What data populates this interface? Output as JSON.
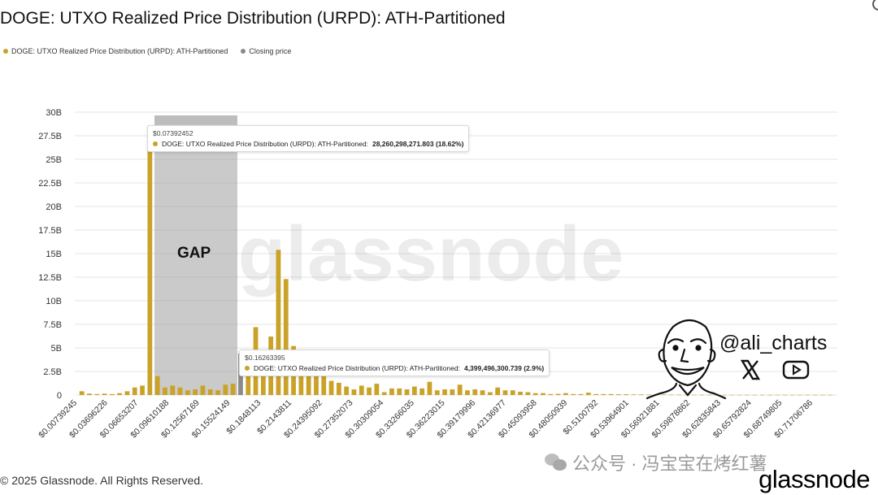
{
  "title": "DOGE: UTXO Realized Price Distribution (URPD): ATH-Partitioned",
  "colors": {
    "series": "#c9a227",
    "closing": "#8a8a8a",
    "gap": "#9e9e9e",
    "grid": "#e6e6e6"
  },
  "legend": [
    {
      "label": "DOGE: UTXO Realized Price Distribution (URPD): ATH-Partitioned",
      "color": "#c9a227"
    },
    {
      "label": "Closing price",
      "color": "#8a8a8a"
    }
  ],
  "gap_label": "GAP",
  "tooltips": [
    {
      "price": "$0.07392452",
      "series": "DOGE: UTXO Realized Price Distribution (URPD): ATH-Partitioned:",
      "value": "28,260,298,271.803 (18.62%)"
    },
    {
      "price": "$0.16263395",
      "series": "DOGE: UTXO Realized Price Distribution (URPD): ATH-Partitioned:",
      "value": "4,399,496,300.739 (2.9%)"
    }
  ],
  "handle": "@ali_charts",
  "watermark_brand": "glassnode",
  "watermark_cn": "公众号 · 冯宝宝在烤红薯",
  "footer": "© 2025 Glassnode. All Rights Reserved.",
  "brand": "glassnode",
  "chart_data": {
    "type": "bar",
    "title": "DOGE: UTXO Realized Price Distribution (URPD): ATH-Partitioned",
    "ylabel": "",
    "xlabel": "",
    "ylim": [
      0,
      30
    ],
    "y_unit": "B",
    "y_ticks": [
      "0",
      "2.5B",
      "5B",
      "7.5B",
      "10B",
      "12.5B",
      "15B",
      "17.5B",
      "20B",
      "22.5B",
      "25B",
      "27.5B",
      "30B"
    ],
    "x_tick_labels": [
      "$0.00739245",
      "$0.03696226",
      "$0.06653207",
      "$0.09610188",
      "$0.12567169",
      "$0.15524149",
      "$0.1848113",
      "$0.2143811",
      "$0.24395092",
      "$0.27352073",
      "$0.30309054",
      "$0.33266035",
      "$0.36223015",
      "$0.39179996",
      "$0.42136977",
      "$0.45093958",
      "$0.48050939",
      "$0.5100792",
      "$0.53964901",
      "$0.56921881",
      "$0.59878862",
      "$0.62835843",
      "$0.65792824",
      "$0.68749805",
      "$0.71706786"
    ],
    "gap_range": [
      "$0.07392452",
      "$0.16263395"
    ],
    "closing_price": "$0.16263395",
    "series": [
      {
        "name": "DOGE: UTXO Realized Price Distribution (URPD): ATH-Partitioned",
        "values": [
          0.4,
          0.15,
          0.1,
          0.15,
          0.1,
          0.2,
          0.4,
          0.8,
          1.0,
          28.26,
          2.0,
          0.8,
          1.0,
          0.8,
          0.5,
          0.6,
          1.0,
          0.6,
          0.5,
          1.1,
          1.2,
          4.4,
          2.5,
          7.2,
          4.0,
          6.2,
          15.4,
          12.3,
          5.2,
          3.0,
          2.6,
          2.3,
          2.0,
          1.5,
          1.3,
          0.9,
          0.6,
          1.0,
          0.8,
          1.2,
          0.3,
          0.7,
          0.7,
          0.6,
          0.9,
          0.7,
          1.4,
          0.5,
          0.6,
          0.6,
          1.1,
          0.5,
          0.6,
          0.5,
          0.3,
          0.8,
          0.5,
          0.5,
          0.35,
          0.3,
          0.2,
          0.2,
          0.1,
          0.12,
          0.2,
          0.1,
          0.1,
          0.25,
          0.1,
          0.1,
          0.1,
          0.08,
          0.08,
          0.06,
          0.06,
          0.05,
          0.05,
          0.05,
          0.04,
          0.04,
          0.03,
          0.03,
          0.03,
          0.03,
          0.02,
          0.02,
          0.02,
          0.02,
          0.02,
          0.02,
          0.02,
          0.02,
          0.02,
          0.02,
          0.02,
          0.02,
          0.02,
          0.02,
          0.02,
          0.02
        ]
      }
    ],
    "closing_bar_index": 21
  }
}
